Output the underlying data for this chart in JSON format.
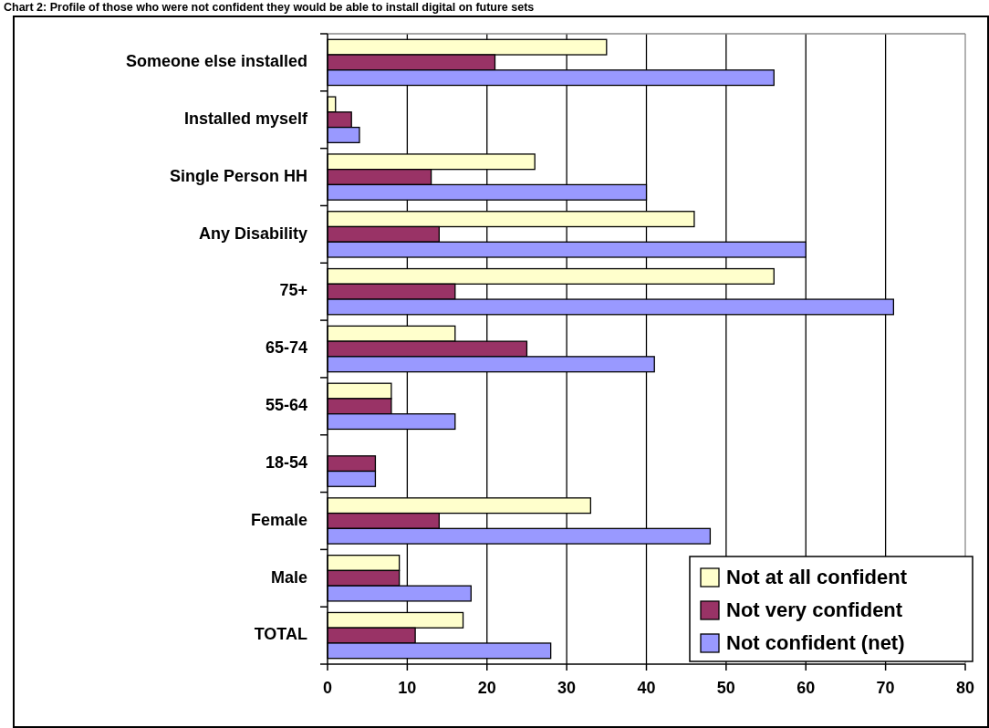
{
  "chart_data": {
    "type": "bar",
    "orientation": "horizontal",
    "title": "Chart 2: Profile of those who were not confident they would be able to install digital on future sets",
    "categories": [
      "Someone else installed",
      "Installed myself",
      "Single Person HH",
      "Any Disability",
      "75+",
      "65-74",
      "55-64",
      "18-54",
      "Female",
      "Male",
      "TOTAL"
    ],
    "series": [
      {
        "name": "Not at all confident",
        "color": "#ffffcc",
        "values": [
          35,
          1,
          26,
          46,
          56,
          16,
          8,
          0,
          33,
          9,
          17
        ]
      },
      {
        "name": "Not very confident",
        "color": "#993366",
        "values": [
          21,
          3,
          13,
          14,
          16,
          25,
          8,
          6,
          14,
          9,
          11
        ]
      },
      {
        "name": "Not confident (net)",
        "color": "#9999ff",
        "values": [
          56,
          4,
          40,
          60,
          71,
          41,
          16,
          6,
          48,
          18,
          28
        ]
      }
    ],
    "xlim": [
      0,
      80
    ],
    "xticks": [
      0,
      10,
      20,
      30,
      40,
      50,
      60,
      70,
      80
    ],
    "grid": "x",
    "legend": "bottom right"
  }
}
